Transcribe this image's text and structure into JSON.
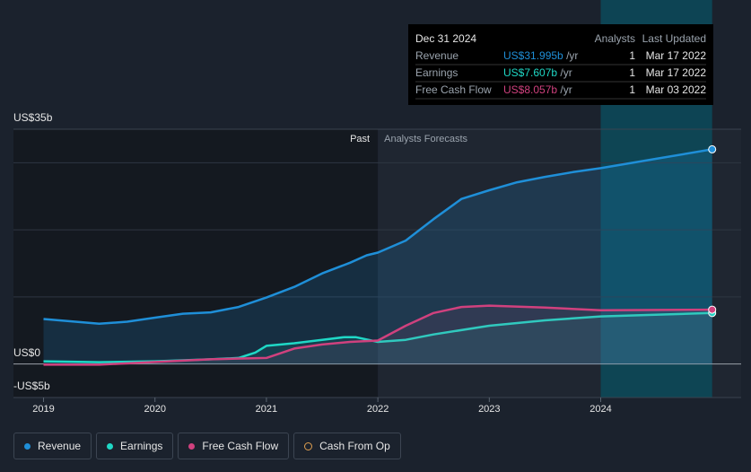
{
  "chart_data": {
    "type": "line",
    "xlim": [
      2018.73,
      2025.26
    ],
    "xticks": [
      2019,
      2020,
      2021,
      2022,
      2023,
      2024
    ],
    "ylim": [
      -5,
      35
    ],
    "yticks": [
      {
        "value": 35,
        "label": "US$35b"
      },
      {
        "value": 0,
        "label": "US$0"
      },
      {
        "value": -5,
        "label": "-US$5b"
      }
    ],
    "ygrid": [
      30,
      20,
      10
    ],
    "past_label": "Past",
    "forecast_label": "Analysts Forecasts",
    "forecast_start": 2022,
    "highlight": [
      2024,
      2025
    ],
    "series": [
      {
        "name": "Revenue",
        "color": "#1f8fd8",
        "x": [
          2019,
          2019.5,
          2019.75,
          2020,
          2020.25,
          2020.5,
          2020.75,
          2021,
          2021.25,
          2021.5,
          2021.75,
          2021.9,
          2022,
          2022.25,
          2022.5,
          2022.75,
          2023,
          2023.25,
          2023.5,
          2023.75,
          2024,
          2024.5,
          2025
        ],
        "values": [
          6.7,
          6.0,
          6.3,
          6.9,
          7.5,
          7.7,
          8.5,
          9.9,
          11.5,
          13.5,
          15.1,
          16.2,
          16.6,
          18.4,
          21.6,
          24.6,
          25.9,
          27.1,
          27.9,
          28.6,
          29.2,
          30.6,
          32.0
        ]
      },
      {
        "name": "Earnings",
        "color": "#1fd8c6",
        "x": [
          2019,
          2019.5,
          2020,
          2020.5,
          2020.75,
          2020.9,
          2021,
          2021.25,
          2021.5,
          2021.7,
          2021.8,
          2022,
          2022.25,
          2022.5,
          2023,
          2023.5,
          2024,
          2025
        ],
        "values": [
          0.4,
          0.27,
          0.4,
          0.7,
          0.9,
          1.7,
          2.7,
          3.1,
          3.6,
          4.0,
          4.0,
          3.3,
          3.6,
          4.4,
          5.7,
          6.5,
          7.1,
          7.6
        ]
      },
      {
        "name": "Free Cash Flow",
        "color": "#d0417e",
        "x": [
          2019,
          2019.5,
          2020,
          2020.5,
          2021,
          2021.25,
          2021.5,
          2021.75,
          2022,
          2022.25,
          2022.5,
          2022.75,
          2023,
          2023.5,
          2024,
          2025
        ],
        "values": [
          -0.1,
          -0.1,
          0.3,
          0.7,
          0.9,
          2.3,
          2.9,
          3.3,
          3.5,
          5.7,
          7.6,
          8.5,
          8.7,
          8.4,
          8.0,
          8.1
        ]
      },
      {
        "name": "Cash From Op",
        "color": "#e0a050",
        "x": [],
        "values": []
      }
    ],
    "tooltip": {
      "date": "Dec 31 2024",
      "col_analysts": "Analysts",
      "col_updated": "Last Updated",
      "rows": [
        {
          "name": "Revenue",
          "value": "US$31.995b",
          "unit": "/yr",
          "analysts": 1,
          "updated": "Mar 17 2022"
        },
        {
          "name": "Earnings",
          "value": "US$7.607b",
          "unit": "/yr",
          "analysts": 1,
          "updated": "Mar 17 2022"
        },
        {
          "name": "Free Cash Flow",
          "value": "US$8.057b",
          "unit": "/yr",
          "analysts": 1,
          "updated": "Mar 03 2022"
        }
      ]
    }
  }
}
